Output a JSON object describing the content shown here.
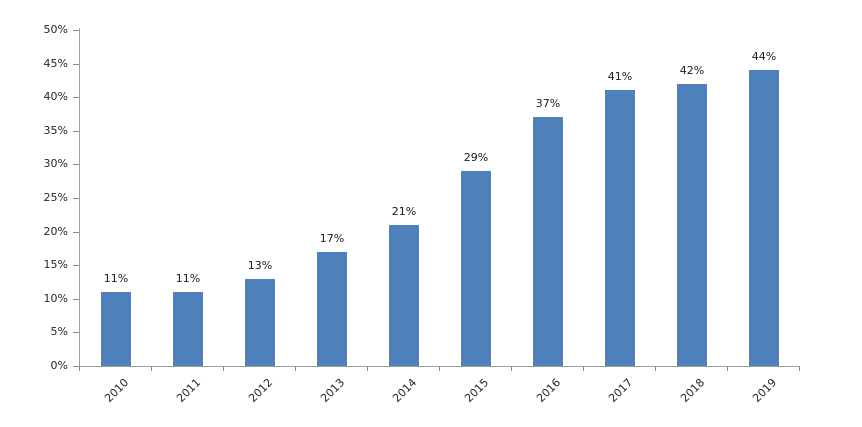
{
  "chart_data": {
    "type": "bar",
    "title": "",
    "xlabel": "",
    "ylabel": "",
    "categories": [
      "2010",
      "2011",
      "2012",
      "2013",
      "2014",
      "2015",
      "2016",
      "2017",
      "2018",
      "2019"
    ],
    "values": [
      11,
      11,
      13,
      17,
      21,
      29,
      37,
      41,
      42,
      44
    ],
    "value_labels": [
      "11%",
      "11%",
      "13%",
      "17%",
      "21%",
      "29%",
      "37%",
      "41%",
      "42%",
      "44%"
    ],
    "y_tick_labels": [
      "0%",
      "5%",
      "10%",
      "15%",
      "20%",
      "25%",
      "30%",
      "35%",
      "40%",
      "45%",
      "50%"
    ],
    "y_tick_values": [
      0,
      5,
      10,
      15,
      20,
      25,
      30,
      35,
      40,
      45,
      50
    ],
    "ylim": [
      0,
      50
    ],
    "grid": "off",
    "legend": "none",
    "bar_color": "#4f81bd",
    "axis_color": "#a0a0a0",
    "tick_color": "#8c8c8c",
    "label_color": "#262626"
  }
}
